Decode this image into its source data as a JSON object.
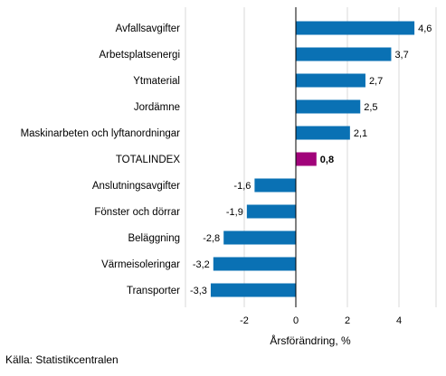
{
  "chart_data": {
    "type": "bar",
    "orientation": "horizontal",
    "categories": [
      "Avfallsavgifter",
      "Arbetsplatsenergi",
      "Ytmaterial",
      "Jordämne",
      "Maskinarbeten och lyftanordningar",
      "TOTALINDEX",
      "Anslutningsavgifter",
      "Fönster och dörrar",
      "Beläggning",
      "Värmeisoleringar",
      "Transporter"
    ],
    "values": [
      4.6,
      3.7,
      2.7,
      2.5,
      2.1,
      0.8,
      -1.6,
      -1.9,
      -2.8,
      -3.2,
      -3.3
    ],
    "value_labels": [
      "4,6",
      "3,7",
      "2,7",
      "2,5",
      "2,1",
      "0,8",
      "-1,6",
      "-1,9",
      "-2,8",
      "-3,2",
      "-3,3"
    ],
    "highlight_category": "TOTALINDEX",
    "colors": {
      "default": "#0a71b4",
      "highlight": "#a1037a",
      "zero_line": "#000000",
      "grid": "#d9d9d9"
    },
    "xlabel": "Årsförändring, %",
    "xlim": [
      -4.3,
      5.5
    ],
    "xticks": [
      -2,
      0,
      2,
      4
    ],
    "xtick_labels": [
      "-2",
      "0",
      "2",
      "4"
    ],
    "grid": true,
    "legend": "none"
  },
  "source": "Källa: Statistikcentralen"
}
